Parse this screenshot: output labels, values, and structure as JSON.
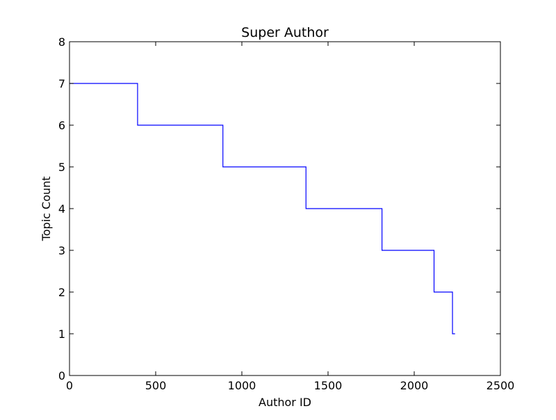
{
  "chart_data": {
    "type": "line",
    "drawstyle": "steps",
    "title": "Super Author",
    "xlabel": "Author ID",
    "ylabel": "Topic Count",
    "xlim": [
      0,
      2500
    ],
    "ylim": [
      0,
      8
    ],
    "xticks": [
      0,
      500,
      1000,
      1500,
      2000,
      2500
    ],
    "yticks": [
      0,
      1,
      2,
      3,
      4,
      5,
      6,
      7,
      8
    ],
    "grid": false,
    "legend": "none",
    "series": [
      {
        "color": "#0000ff",
        "points": [
          [
            0,
            7
          ],
          [
            395,
            7
          ],
          [
            395,
            6
          ],
          [
            890,
            6
          ],
          [
            890,
            5
          ],
          [
            1372,
            5
          ],
          [
            1372,
            4
          ],
          [
            1813,
            4
          ],
          [
            1813,
            3
          ],
          [
            2115,
            3
          ],
          [
            2115,
            2
          ],
          [
            2222,
            2
          ],
          [
            2222,
            1
          ],
          [
            2237,
            1
          ]
        ]
      }
    ]
  }
}
